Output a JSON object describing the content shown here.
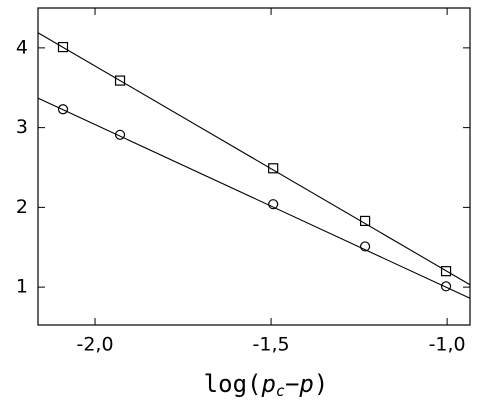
{
  "chart_data": {
    "type": "scatter",
    "xlabel": [
      "log(",
      "p",
      "c",
      "−",
      "p",
      ")"
    ],
    "xlim": [
      -2.162,
      -0.935
    ],
    "ylim": [
      0.525,
      4.5
    ],
    "xticks": [
      {
        "value": -2.0,
        "label": "-2,0"
      },
      {
        "value": -1.5,
        "label": "-1,5"
      },
      {
        "value": -1.0,
        "label": "-1,0"
      }
    ],
    "yticks": [
      1,
      2,
      3,
      4
    ],
    "series": [
      {
        "marker": "square",
        "color": "#000000",
        "x": [
          -2.091,
          -1.929,
          -1.494,
          -1.233,
          -1.003
        ],
        "values": [
          4.01,
          3.59,
          2.49,
          1.83,
          1.2
        ]
      },
      {
        "marker": "circle",
        "color": "#000000",
        "x": [
          -2.091,
          -1.929,
          -1.494,
          -1.233,
          -1.003
        ],
        "values": [
          3.23,
          2.91,
          2.04,
          1.51,
          1.01
        ]
      },
      {
        "marker": "line",
        "color": "#000000",
        "x": [
          -2.162,
          -0.935
        ],
        "values": [
          4.19,
          1.03
        ]
      },
      {
        "marker": "line",
        "color": "#000000",
        "x": [
          -2.162,
          -0.935
        ],
        "values": [
          3.37,
          0.86
        ]
      }
    ]
  }
}
